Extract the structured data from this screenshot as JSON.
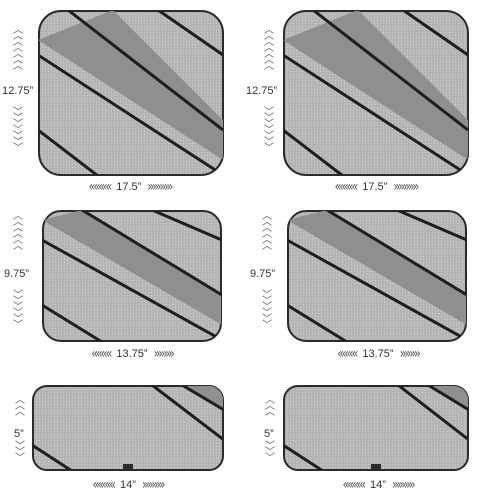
{
  "cubes": [
    {
      "width": "17.5”",
      "height": "12.75”"
    },
    {
      "width": "17.5”",
      "height": "12.75”"
    },
    {
      "width": "13.75”",
      "height": "9.75”"
    },
    {
      "width": "13.75”",
      "height": "9.75”"
    },
    {
      "width": "14”",
      "height": "5”"
    },
    {
      "width": "14”",
      "height": "5”"
    }
  ],
  "colors": {
    "panel": "#a9a9a9",
    "mesh": "#bdbdbd",
    "band": "#1e1e1e",
    "border": "#2b2b2b"
  },
  "icons": {
    "arrow_left": "chevron-left-icon",
    "arrow_right": "chevron-right-icon",
    "arrow_up": "chevron-up-icon",
    "arrow_down": "chevron-down-icon"
  }
}
